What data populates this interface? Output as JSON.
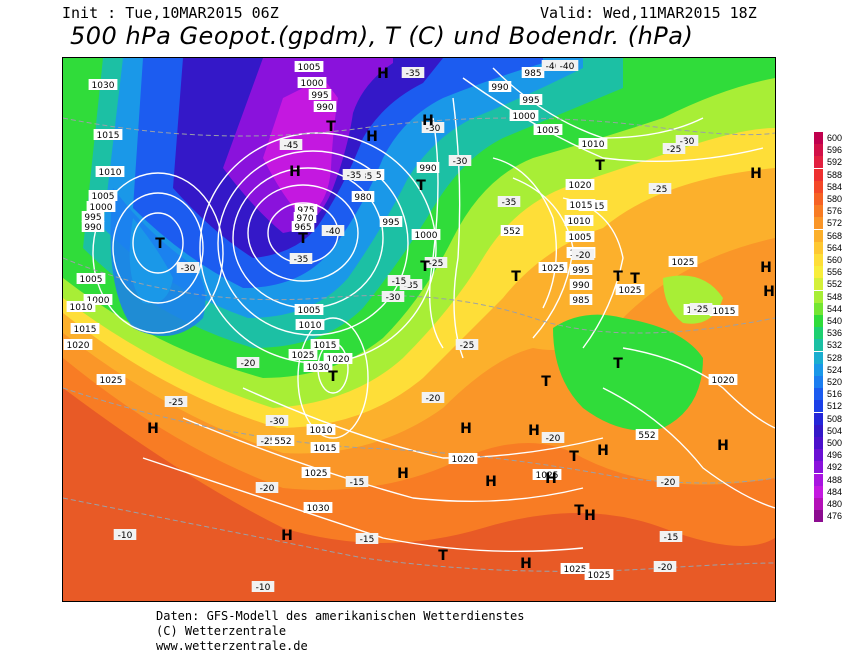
{
  "header": {
    "init": "Init : Tue,10MAR2015 06Z",
    "valid": "Valid: Wed,11MAR2015 18Z",
    "title": "500 hPa Geopot.(gpdm), T (C) und Bodendr. (hPa)"
  },
  "legend": {
    "values": [
      "600",
      "596",
      "592",
      "588",
      "584",
      "580",
      "576",
      "572",
      "568",
      "564",
      "560",
      "556",
      "552",
      "548",
      "544",
      "540",
      "536",
      "532",
      "528",
      "524",
      "520",
      "516",
      "512",
      "508",
      "504",
      "500",
      "496",
      "492",
      "488",
      "484",
      "480",
      "476"
    ],
    "colors": [
      "#c0004e",
      "#d21048",
      "#e22040",
      "#ee3030",
      "#f44828",
      "#f66224",
      "#f87c24",
      "#fa9628",
      "#fcb02c",
      "#fec832",
      "#fede38",
      "#f8ee3c",
      "#d4f03a",
      "#a8ee36",
      "#74e632",
      "#30dc3a",
      "#1ed070",
      "#1cc0a4",
      "#1aaed0",
      "#1a98e8",
      "#1c7ef0",
      "#1c5cf0",
      "#1c40e8",
      "#2426d8",
      "#3418c8",
      "#4c10cc",
      "#6a10d4",
      "#8a12dc",
      "#a814e0",
      "#c418e0",
      "#b410b8",
      "#8c0c90"
    ]
  },
  "map": {
    "pressure_labels": [
      "1030",
      "1015",
      "1010",
      "1005",
      "1000",
      "995",
      "990",
      "1000",
      "1005",
      "1010",
      "1015",
      "1020",
      "1025",
      "1005",
      "1000",
      "995",
      "990",
      "985",
      "980",
      "975",
      "970",
      "965",
      "995",
      "990",
      "1000",
      "1005",
      "1010",
      "1015",
      "1020",
      "1025",
      "1030",
      "985",
      "990",
      "995",
      "1000",
      "1005",
      "1010",
      "1015",
      "1025",
      "1020",
      "1015",
      "1010",
      "1005",
      "1000",
      "995",
      "990",
      "985",
      "1010",
      "1015",
      "1025",
      "1030",
      "1020",
      "1025",
      "1025",
      "1025",
      "1015",
      "1015",
      "1020",
      "1025",
      "1025"
    ],
    "temp_labels": [
      "-35",
      "-40",
      "-40",
      "-45",
      "-35",
      "-35",
      "-30",
      "-35",
      "-35",
      "-30",
      "-25",
      "-30",
      "-40",
      "-35",
      "-30",
      "-25",
      "-20",
      "-25",
      "-30",
      "-20",
      "-25",
      "-20",
      "-15",
      "-20",
      "-25",
      "-30",
      "-25",
      "-20",
      "-15",
      "-10",
      "-10",
      "-15",
      "-20",
      "-15",
      "-25",
      "-20"
    ],
    "highs": [
      "H",
      "H",
      "H",
      "H",
      "H",
      "H",
      "H",
      "H",
      "H",
      "H",
      "H",
      "H",
      "H",
      "H",
      "H",
      "H",
      "H",
      "H"
    ],
    "lows": [
      "T",
      "T",
      "T",
      "T",
      "T",
      "T",
      "T",
      "T",
      "T",
      "T",
      "T",
      "T",
      "T",
      "T",
      "T"
    ],
    "contour_552": [
      "552",
      "552",
      "552"
    ]
  },
  "footer": {
    "line1": "Daten: GFS-Modell des amerikanischen Wetterdienstes",
    "line2": "(C) Wetterzentrale",
    "line3": "www.wetterzentrale.de"
  }
}
